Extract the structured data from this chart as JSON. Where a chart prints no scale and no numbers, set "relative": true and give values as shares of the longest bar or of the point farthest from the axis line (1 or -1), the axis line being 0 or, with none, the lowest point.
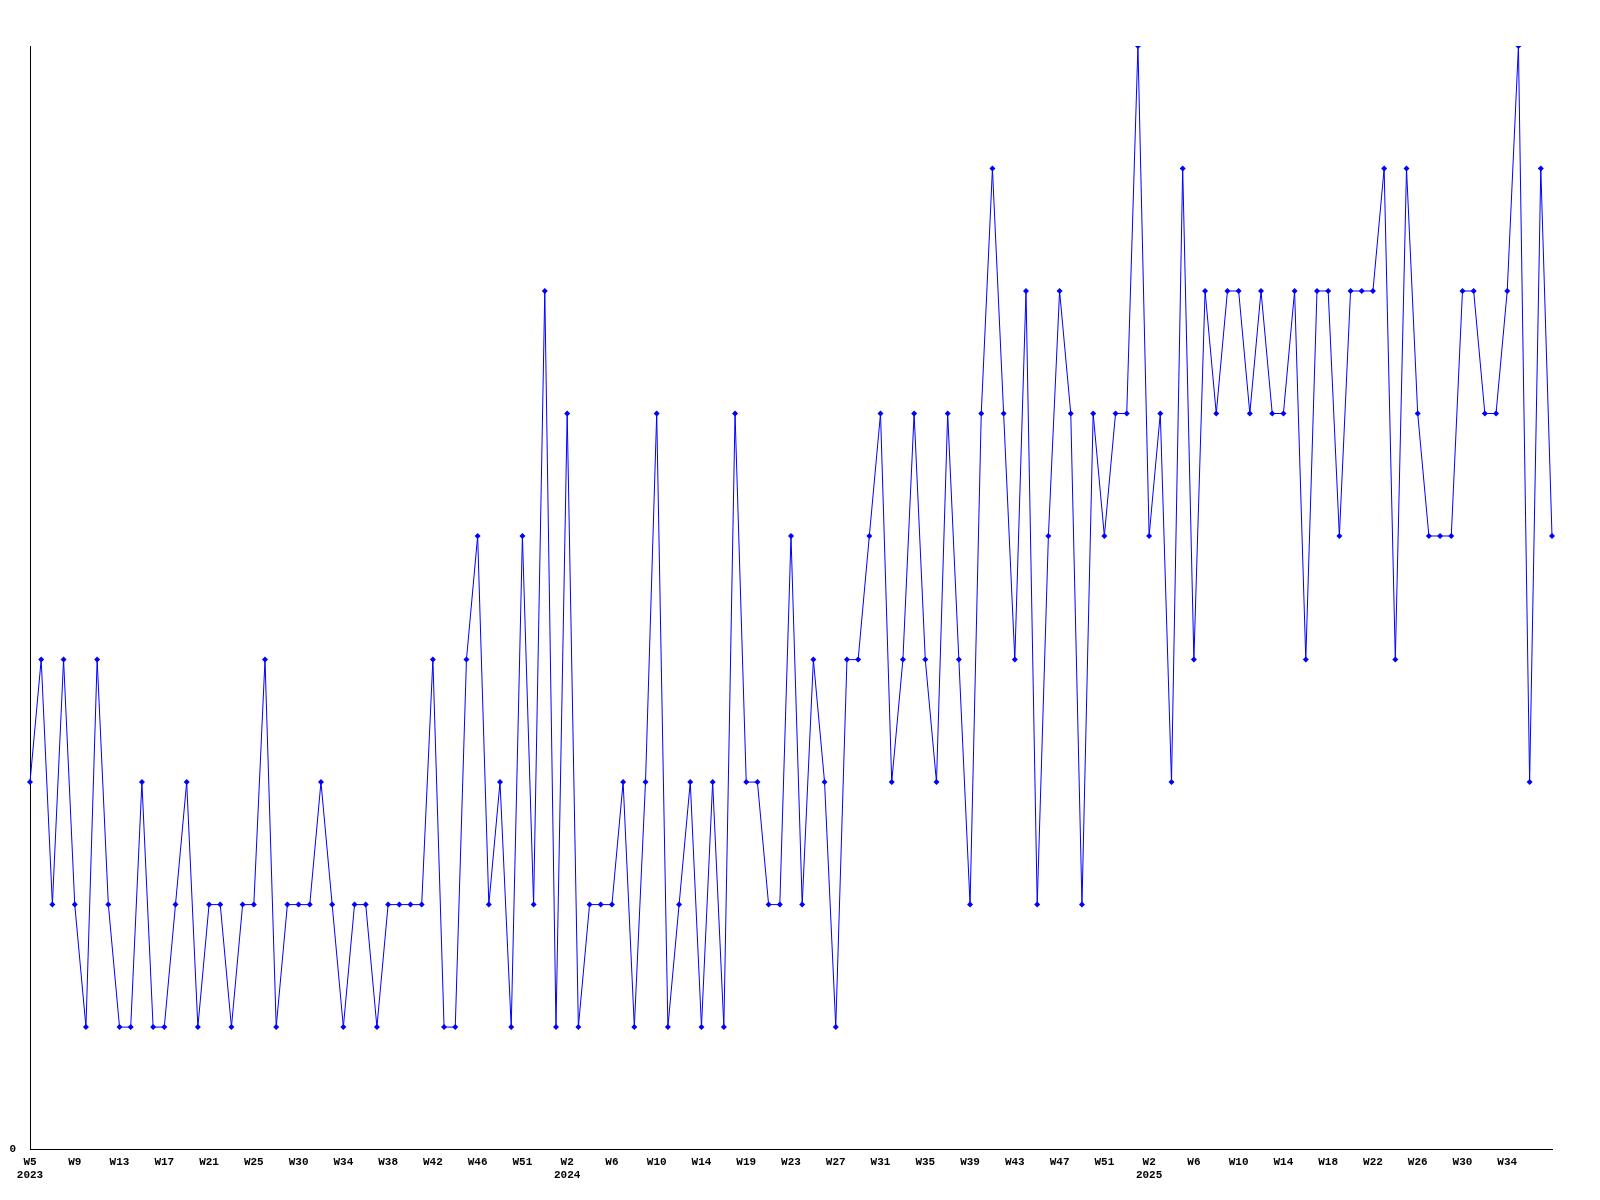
{
  "chart_data": {
    "type": "line",
    "relative": true,
    "annotations": [
      "0"
    ],
    "grid": false,
    "legend": false,
    "marker": "diamond",
    "line_style": "solid",
    "categories": [
      "W5\n2023",
      null,
      null,
      null,
      "W9",
      null,
      null,
      null,
      "W13",
      null,
      null,
      null,
      "W17",
      null,
      null,
      null,
      "W21",
      null,
      null,
      null,
      "W25",
      null,
      null,
      null,
      "W30",
      null,
      null,
      null,
      "W34",
      null,
      null,
      null,
      "W38",
      null,
      null,
      null,
      "W42",
      null,
      null,
      null,
      "W46",
      null,
      null,
      null,
      "W51",
      null,
      null,
      null,
      "W2\n2024",
      null,
      null,
      null,
      "W6",
      null,
      null,
      null,
      "W10",
      null,
      null,
      null,
      "W14",
      null,
      null,
      null,
      "W19",
      null,
      null,
      null,
      "W23",
      null,
      null,
      null,
      "W27",
      null,
      null,
      null,
      "W31",
      null,
      null,
      null,
      "W35",
      null,
      null,
      null,
      "W39",
      null,
      null,
      null,
      "W43",
      null,
      null,
      null,
      "W47",
      null,
      null,
      null,
      "W51",
      null,
      null,
      null,
      "W2\n2025",
      null,
      null,
      null,
      "W6",
      null,
      null,
      null,
      "W10",
      null,
      null,
      null,
      "W14",
      null,
      null,
      null,
      "W18",
      null,
      null,
      null,
      "W22",
      null,
      null,
      null,
      "W26",
      null,
      null,
      null,
      "W30",
      null,
      null,
      null,
      "W34",
      null,
      null,
      null,
      null
    ],
    "series": [
      {
        "color": "#0000ff",
        "values": [
          0.333,
          0.444,
          0.222,
          0.444,
          0.222,
          0.111,
          0.444,
          0.222,
          0.111,
          0.111,
          0.333,
          0.111,
          0.111,
          0.222,
          0.333,
          0.111,
          0.222,
          0.222,
          0.111,
          0.222,
          0.222,
          0.444,
          0.111,
          0.222,
          0.222,
          0.222,
          0.333,
          0.222,
          0.111,
          0.222,
          0.222,
          0.111,
          0.222,
          0.222,
          0.222,
          0.222,
          0.444,
          0.111,
          0.111,
          0.444,
          0.556,
          0.222,
          0.333,
          0.111,
          0.556,
          0.222,
          0.778,
          0.111,
          0.667,
          0.111,
          0.222,
          0.222,
          0.222,
          0.333,
          0.111,
          0.333,
          0.667,
          0.111,
          0.222,
          0.333,
          0.111,
          0.333,
          0.111,
          0.667,
          0.333,
          0.333,
          0.222,
          0.222,
          0.556,
          0.222,
          0.444,
          0.333,
          0.111,
          0.444,
          0.444,
          0.556,
          0.667,
          0.333,
          0.444,
          0.667,
          0.444,
          0.333,
          0.667,
          0.444,
          0.222,
          0.667,
          0.889,
          0.667,
          0.444,
          0.778,
          0.222,
          0.556,
          0.778,
          0.667,
          0.222,
          0.667,
          0.556,
          0.667,
          0.667,
          1,
          0.556,
          0.667,
          0.333,
          0.889,
          0.444,
          0.778,
          0.667,
          0.778,
          0.778,
          0.667,
          0.778,
          0.667,
          0.667,
          0.778,
          0.444,
          0.778,
          0.778,
          0.556,
          0.778,
          0.778,
          0.778,
          0.889,
          0.444,
          0.889,
          0.667,
          0.556,
          0.556,
          0.556,
          0.778,
          0.778,
          0.667,
          0.667,
          0.778,
          1,
          0.333,
          0.889,
          0.556
        ]
      }
    ]
  }
}
